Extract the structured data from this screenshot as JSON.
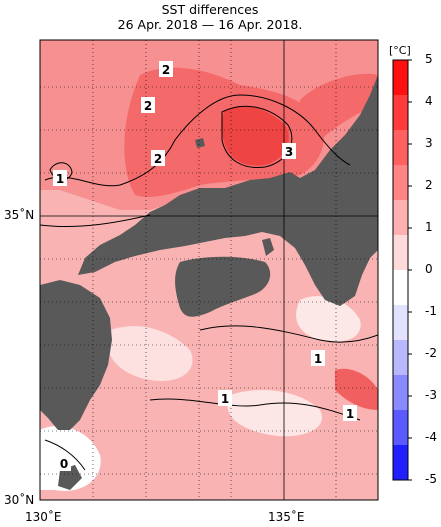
{
  "title": "SST differences",
  "subtitle": "26 Apr. 2018 — 16 Apr. 2018.",
  "axes": {
    "lat_labels": [
      "35˚N",
      "30˚N"
    ],
    "lon_labels": [
      "130˚E",
      "135˚E"
    ]
  },
  "colorbar": {
    "unit": "[°C]",
    "ticks": [
      "5",
      "4",
      "3",
      "2",
      "1",
      "0",
      "-1",
      "-2",
      "-3",
      "-4",
      "-5"
    ],
    "colors": [
      "#ff1010",
      "#ff3a3a",
      "#ff6060",
      "#ff8585",
      "#ffb0b0",
      "#ffdada",
      "#ffffff",
      "#e2e2ff",
      "#b8b8ff",
      "#8a8aff",
      "#5a5aff",
      "#2020ff"
    ]
  },
  "contour_labels": [
    "2",
    "2",
    "2",
    "3",
    "1",
    "1",
    "1",
    "1",
    "0"
  ],
  "colors": {
    "land": "#595959",
    "sea_base": "#f9b3b3"
  }
}
